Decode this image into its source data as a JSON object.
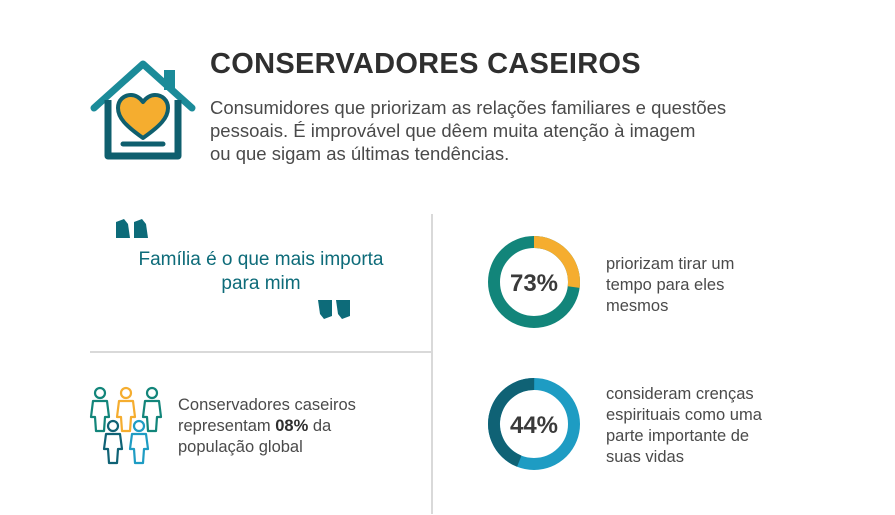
{
  "header": {
    "title": "CONSERVADORES CASEIROS",
    "description_lines": [
      "Consumidores que priorizam as relações familiares e questões",
      "pessoais. É improvável que dêem muita atenção à imagem",
      "ou que sigam as últimas tendências."
    ],
    "icon": "house-heart-icon"
  },
  "quote": {
    "lines": [
      "Família é o que mais importa",
      "para mim"
    ],
    "open_icon": "quote-open-icon",
    "close_icon": "quote-close-icon"
  },
  "population": {
    "icon": "people-group-icon",
    "line1": "Conservadores caseiros",
    "line2_pre": "representam ",
    "line2_bold": "08%",
    "line2_post": " da",
    "line3": "população global"
  },
  "stats": [
    {
      "value": 73,
      "label": "73%",
      "lines": [
        "priorizam tirar um",
        "tempo para eles",
        "mesmos"
      ],
      "primary_color": "#12857a",
      "accent_color": "#f5ad2f"
    },
    {
      "value": 44,
      "label": "44%",
      "lines": [
        "consideram crenças",
        "espirituais como uma",
        "parte importante de",
        "suas vidas"
      ],
      "primary_color": "#1e9cc3",
      "accent_color": "#0f6275"
    }
  ],
  "colors": {
    "teal": "#0d6b79",
    "orange": "#f5ad2f",
    "green": "#12857a",
    "blue": "#1e9cc3",
    "divider": "#d9d9d9"
  }
}
